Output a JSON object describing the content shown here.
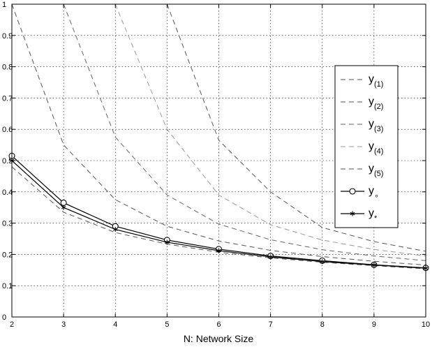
{
  "chart_data": {
    "type": "line",
    "xlabel": "N: Network Size",
    "ylabel": "",
    "xlim": [
      2,
      10
    ],
    "ylim": [
      0,
      1
    ],
    "x_ticks": [
      2,
      3,
      4,
      5,
      6,
      7,
      8,
      9,
      10
    ],
    "y_ticks": [
      "0",
      "0.1",
      "0.2",
      "0.3",
      "0.4",
      "0.5",
      "0.6",
      "0.7",
      "0.8",
      "0.9",
      "1"
    ],
    "grid": true,
    "legend_position": "right",
    "x": [
      2,
      3,
      4,
      5,
      6,
      7,
      8,
      9,
      10
    ],
    "series": [
      {
        "name": "y",
        "sub": "(1)",
        "style": "dashed",
        "color": "#555555",
        "values": [
          0.48,
          0.335,
          0.27,
          0.233,
          0.207,
          0.189,
          0.175,
          0.164,
          0.154
        ]
      },
      {
        "name": "y",
        "sub": "(2)",
        "style": "dashed",
        "color": "#555555",
        "values": [
          1.0,
          0.55,
          0.375,
          0.29,
          0.243,
          0.213,
          0.193,
          0.178,
          0.166
        ]
      },
      {
        "name": "y",
        "sub": "(3)",
        "style": "dashed",
        "color": "#666666",
        "values": [
          null,
          1.0,
          0.575,
          0.39,
          0.297,
          0.247,
          0.215,
          0.195,
          0.18
        ]
      },
      {
        "name": "y",
        "sub": "(4)",
        "style": "dashed",
        "color": "#999999",
        "values": [
          null,
          null,
          1.0,
          0.6,
          0.39,
          0.295,
          0.246,
          0.216,
          0.195
        ]
      },
      {
        "name": "y",
        "sub": "(5)",
        "style": "dashed",
        "color": "#555555",
        "values": [
          null,
          null,
          null,
          1.0,
          0.565,
          0.4,
          0.286,
          0.241,
          0.21
        ]
      },
      {
        "name": "y",
        "sub": "∘",
        "style": "solid-circle",
        "color": "#000000",
        "values": [
          0.515,
          0.365,
          0.29,
          0.246,
          0.217,
          0.195,
          0.18,
          0.167,
          0.157
        ]
      },
      {
        "name": "y",
        "sub": "*",
        "style": "solid-star",
        "color": "#000000",
        "values": [
          0.5,
          0.35,
          0.28,
          0.239,
          0.212,
          0.192,
          0.177,
          0.166,
          0.156
        ]
      }
    ]
  }
}
